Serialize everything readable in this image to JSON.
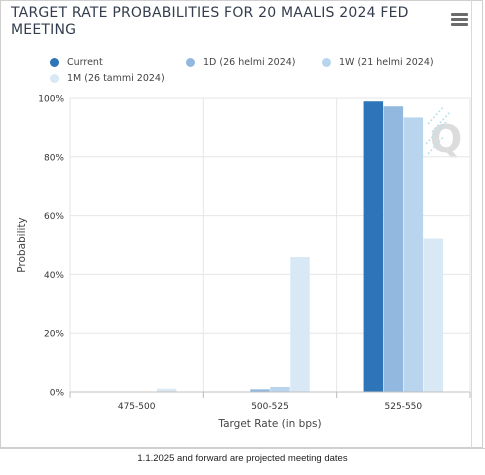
{
  "chart_data": {
    "type": "bar",
    "title": "TARGET RATE PROBABILITIES FOR 20 MAALIS 2024 FED MEETING",
    "xlabel": "Target Rate (in bps)",
    "ylabel": "Probability",
    "ylim": [
      0,
      100
    ],
    "yticks": [
      "0%",
      "20%",
      "40%",
      "60%",
      "80%",
      "100%"
    ],
    "categories": [
      "475-500",
      "500-525",
      "525-550"
    ],
    "series": [
      {
        "name": "Current",
        "color": "#2e74b8",
        "values": [
          0,
          0,
          98.9
        ]
      },
      {
        "name": "1D (26 helmi 2024)",
        "color": "#93b8e0",
        "values": [
          0,
          0.9,
          97.2
        ]
      },
      {
        "name": "1W (21 helmi 2024)",
        "color": "#b9d5ee",
        "values": [
          0,
          1.7,
          93.4
        ]
      },
      {
        "name": "1M (26 tammi 2024)",
        "color": "#d9e8f5",
        "values": [
          1.1,
          45.9,
          52.2
        ]
      }
    ],
    "grid": true,
    "legend": "top"
  },
  "menu_icon": "hamburger-menu-icon",
  "watermark_icon": "q-logo-icon",
  "footer_note": "1.1.2025 and forward are projected meeting dates"
}
